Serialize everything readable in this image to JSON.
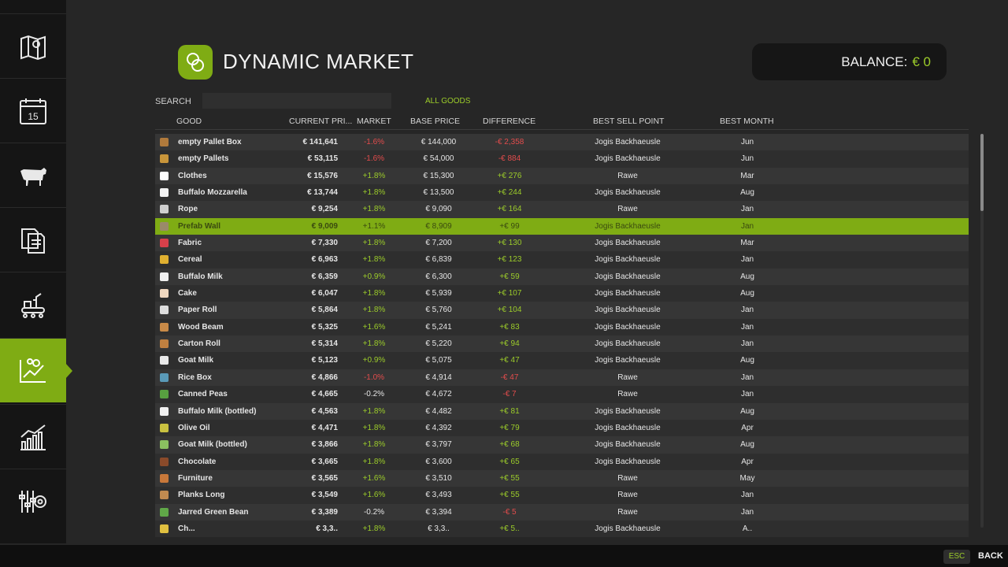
{
  "header": {
    "title": "DYNAMIC MARKET",
    "balance_label": "BALANCE:",
    "balance_value": "€ 0"
  },
  "search": {
    "label": "SEARCH",
    "value": "",
    "placeholder": ""
  },
  "filter": {
    "label": "ALL GOODS"
  },
  "columns": {
    "good": "GOOD",
    "current_price": "CURRENT PRI...",
    "market": "MARKET",
    "base_price": "BASE PRICE",
    "difference": "DIFFERENCE",
    "best_sell_point": "BEST SELL POINT",
    "best_month": "BEST MONTH"
  },
  "sidebar": {
    "items": [
      {
        "icon": "map-icon"
      },
      {
        "icon": "calendar-icon",
        "day": "15"
      },
      {
        "icon": "cow-icon"
      },
      {
        "icon": "contracts-icon"
      },
      {
        "icon": "production-icon"
      },
      {
        "icon": "market-chart-icon",
        "active": true
      },
      {
        "icon": "statistics-icon"
      },
      {
        "icon": "settings-icon"
      }
    ]
  },
  "colors": {
    "accent": "#7fac14",
    "positive": "#9ccc2a",
    "negative": "#e24c4c"
  },
  "rows": [
    {
      "good": "empty Pallet Box",
      "current": "€ 141,641",
      "market": "-1.6%",
      "base": "€ 144,000",
      "diff": "-€ 2,358",
      "sell": "Jogis Backhaeusle",
      "month": "Jun",
      "icon_color": "#b07a3c"
    },
    {
      "good": "empty Pallets",
      "current": "€ 53,115",
      "market": "-1.6%",
      "base": "€ 54,000",
      "diff": "-€ 884",
      "sell": "Jogis Backhaeusle",
      "month": "Jun",
      "icon_color": "#c8953a"
    },
    {
      "good": "Clothes",
      "current": "€ 15,576",
      "market": "+1.8%",
      "base": "€ 15,300",
      "diff": "+€ 276",
      "sell": "Rawe",
      "month": "Mar",
      "icon_color": "#ffffff"
    },
    {
      "good": "Buffalo Mozzarella",
      "current": "€ 13,744",
      "market": "+1.8%",
      "base": "€ 13,500",
      "diff": "+€ 244",
      "sell": "Jogis Backhaeusle",
      "month": "Aug",
      "icon_color": "#f2f2f2"
    },
    {
      "good": "Rope",
      "current": "€ 9,254",
      "market": "+1.8%",
      "base": "€ 9,090",
      "diff": "+€ 164",
      "sell": "Rawe",
      "month": "Jan",
      "icon_color": "#cfcfcf"
    },
    {
      "good": "Prefab Wall",
      "current": "€ 9,009",
      "market": "+1.1%",
      "base": "€ 8,909",
      "diff": "+€ 99",
      "sell": "Jogis Backhaeusle",
      "month": "Jan",
      "icon_color": "#9a8a6a",
      "selected": true
    },
    {
      "good": "Fabric",
      "current": "€ 7,330",
      "market": "+1.8%",
      "base": "€ 7,200",
      "diff": "+€ 130",
      "sell": "Jogis Backhaeusle",
      "month": "Mar",
      "icon_color": "#d8404a"
    },
    {
      "good": "Cereal",
      "current": "€ 6,963",
      "market": "+1.8%",
      "base": "€ 6,839",
      "diff": "+€ 123",
      "sell": "Jogis Backhaeusle",
      "month": "Jan",
      "icon_color": "#e0b030"
    },
    {
      "good": "Buffalo Milk",
      "current": "€ 6,359",
      "market": "+0.9%",
      "base": "€ 6,300",
      "diff": "+€ 59",
      "sell": "Jogis Backhaeusle",
      "month": "Aug",
      "icon_color": "#f0f0f0"
    },
    {
      "good": "Cake",
      "current": "€ 6,047",
      "market": "+1.8%",
      "base": "€ 5,939",
      "diff": "+€ 107",
      "sell": "Jogis Backhaeusle",
      "month": "Aug",
      "icon_color": "#f0d8c0"
    },
    {
      "good": "Paper Roll",
      "current": "€ 5,864",
      "market": "+1.8%",
      "base": "€ 5,760",
      "diff": "+€ 104",
      "sell": "Jogis Backhaeusle",
      "month": "Jan",
      "icon_color": "#dddddd"
    },
    {
      "good": "Wood Beam",
      "current": "€ 5,325",
      "market": "+1.6%",
      "base": "€ 5,241",
      "diff": "+€ 83",
      "sell": "Jogis Backhaeusle",
      "month": "Jan",
      "icon_color": "#c88a48"
    },
    {
      "good": "Carton Roll",
      "current": "€ 5,314",
      "market": "+1.8%",
      "base": "€ 5,220",
      "diff": "+€ 94",
      "sell": "Jogis Backhaeusle",
      "month": "Jan",
      "icon_color": "#c08040"
    },
    {
      "good": "Goat Milk",
      "current": "€ 5,123",
      "market": "+0.9%",
      "base": "€ 5,075",
      "diff": "+€ 47",
      "sell": "Jogis Backhaeusle",
      "month": "Aug",
      "icon_color": "#e8e8e8"
    },
    {
      "good": "Rice Box",
      "current": "€ 4,866",
      "market": "-1.0%",
      "base": "€ 4,914",
      "diff": "-€ 47",
      "sell": "Rawe",
      "month": "Jan",
      "icon_color": "#5a9ab8"
    },
    {
      "good": "Canned Peas",
      "current": "€ 4,665",
      "market": "-0.2%",
      "base": "€ 4,672",
      "diff": "-€ 7",
      "sell": "Rawe",
      "month": "Jan",
      "icon_color": "#58a040"
    },
    {
      "good": "Buffalo Milk (bottled)",
      "current": "€ 4,563",
      "market": "+1.8%",
      "base": "€ 4,482",
      "diff": "+€ 81",
      "sell": "Jogis Backhaeusle",
      "month": "Aug",
      "icon_color": "#f0f0f0"
    },
    {
      "good": "Olive Oil",
      "current": "€ 4,471",
      "market": "+1.8%",
      "base": "€ 4,392",
      "diff": "+€ 79",
      "sell": "Jogis Backhaeusle",
      "month": "Apr",
      "icon_color": "#c8c040"
    },
    {
      "good": "Goat Milk (bottled)",
      "current": "€ 3,866",
      "market": "+1.8%",
      "base": "€ 3,797",
      "diff": "+€ 68",
      "sell": "Jogis Backhaeusle",
      "month": "Aug",
      "icon_color": "#8ac060"
    },
    {
      "good": "Chocolate",
      "current": "€ 3,665",
      "market": "+1.8%",
      "base": "€ 3,600",
      "diff": "+€ 65",
      "sell": "Jogis Backhaeusle",
      "month": "Apr",
      "icon_color": "#8a4a2a"
    },
    {
      "good": "Furniture",
      "current": "€ 3,565",
      "market": "+1.6%",
      "base": "€ 3,510",
      "diff": "+€ 55",
      "sell": "Rawe",
      "month": "May",
      "icon_color": "#c8783a"
    },
    {
      "good": "Planks Long",
      "current": "€ 3,549",
      "market": "+1.6%",
      "base": "€ 3,493",
      "diff": "+€ 55",
      "sell": "Rawe",
      "month": "Jan",
      "icon_color": "#c08a50"
    },
    {
      "good": "Jarred Green Bean",
      "current": "€ 3,389",
      "market": "-0.2%",
      "base": "€ 3,394",
      "diff": "-€ 5",
      "sell": "Rawe",
      "month": "Jan",
      "icon_color": "#60a848"
    },
    {
      "good": "Ch...",
      "current": "€ 3,3..",
      "market": "+1.8%",
      "base": "€ 3,3..",
      "diff": "+€ 5..",
      "sell": "Jogis Backhaeusle",
      "month": "A..",
      "icon_color": "#e0c040"
    }
  ],
  "footer": {
    "key": "ESC",
    "label": "BACK"
  }
}
